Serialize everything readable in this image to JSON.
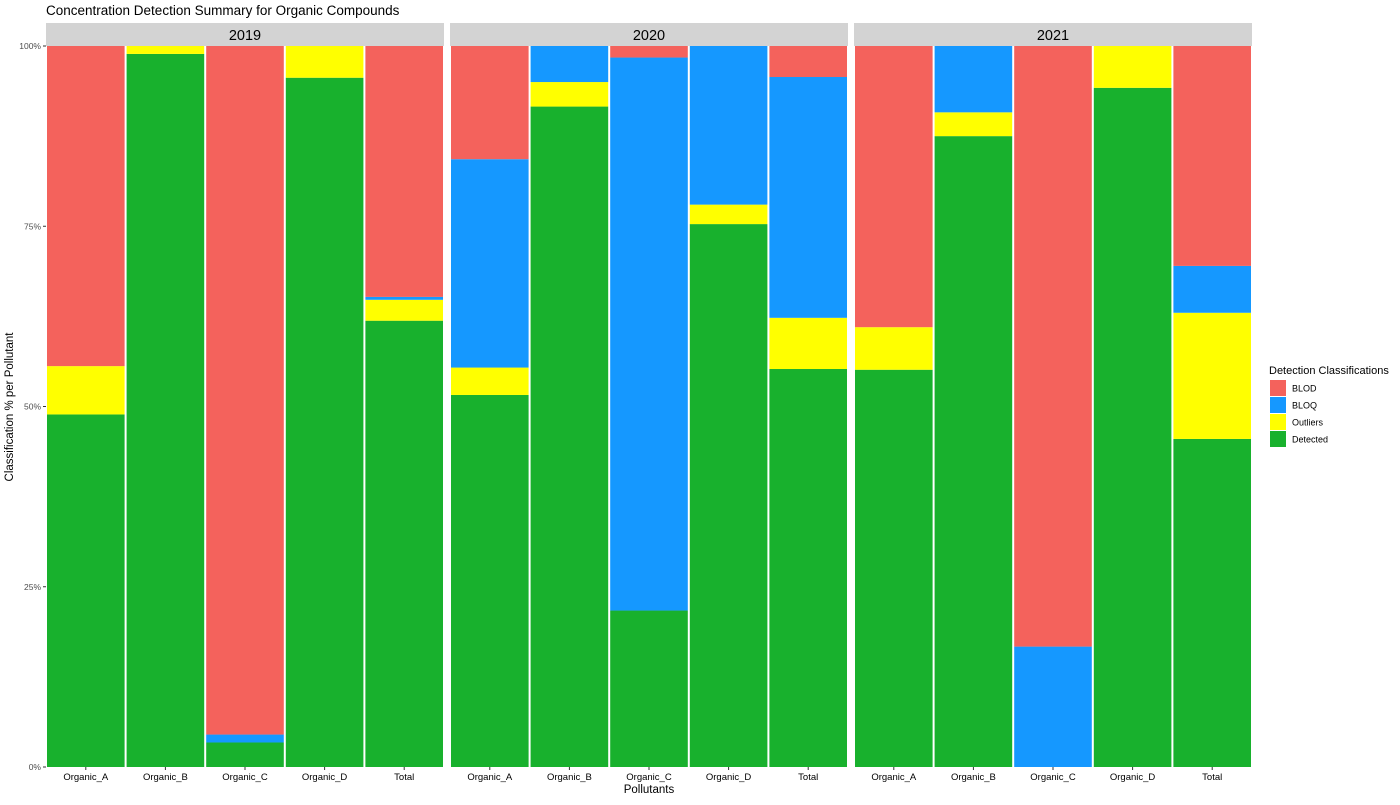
{
  "chart_data": {
    "type": "bar",
    "stacked": true,
    "percent": true,
    "title": "Concentration Detection Summary for Organic Compounds",
    "xlabel": "Pollutants",
    "ylabel": "Classification % per Pollutant",
    "ylim": [
      0,
      100
    ],
    "yticks": [
      "0%",
      "25%",
      "50%",
      "75%",
      "100%"
    ],
    "legend": {
      "title": "Detection Classifications",
      "position": "right",
      "entries": [
        "BLOD",
        "BLOQ",
        "Outliers",
        "Detected"
      ]
    },
    "colors": {
      "BLOD": "#F4625C",
      "BLOQ": "#1598FF",
      "Outliers": "#FFFF00",
      "Detected": "#18B12D",
      "strip": "#D3D3D3",
      "text": "#000000",
      "tick_text": "#4D4D4D"
    },
    "categories": [
      "Organic_A",
      "Organic_B",
      "Organic_C",
      "Organic_D",
      "Total"
    ],
    "panels": [
      {
        "label": "2019",
        "series": [
          {
            "name": "Detected",
            "values": [
              48.9,
              98.9,
              3.4,
              95.6,
              61.9
            ]
          },
          {
            "name": "Outliers",
            "values": [
              6.7,
              1.1,
              0.0,
              4.4,
              2.9
            ]
          },
          {
            "name": "BLOQ",
            "values": [
              0.0,
              0.0,
              1.1,
              0.0,
              0.4
            ]
          },
          {
            "name": "BLOD",
            "values": [
              44.4,
              0.0,
              95.5,
              0.0,
              34.8
            ]
          }
        ]
      },
      {
        "label": "2020",
        "series": [
          {
            "name": "Detected",
            "values": [
              51.6,
              91.6,
              21.7,
              75.3,
              55.2
            ]
          },
          {
            "name": "Outliers",
            "values": [
              3.8,
              3.4,
              0.0,
              2.7,
              7.1
            ]
          },
          {
            "name": "BLOQ",
            "values": [
              28.9,
              5.0,
              76.7,
              22.0,
              33.4
            ]
          },
          {
            "name": "BLOD",
            "values": [
              15.7,
              0.0,
              1.6,
              0.0,
              4.3
            ]
          }
        ]
      },
      {
        "label": "2021",
        "series": [
          {
            "name": "Detected",
            "values": [
              55.1,
              87.5,
              0.0,
              94.2,
              45.5
            ]
          },
          {
            "name": "Outliers",
            "values": [
              5.9,
              3.3,
              0.0,
              5.8,
              17.5
            ]
          },
          {
            "name": "BLOQ",
            "values": [
              0.0,
              9.2,
              16.7,
              0.0,
              6.5
            ]
          },
          {
            "name": "BLOD",
            "values": [
              39.0,
              0.0,
              83.3,
              0.0,
              30.5
            ]
          }
        ]
      }
    ]
  }
}
